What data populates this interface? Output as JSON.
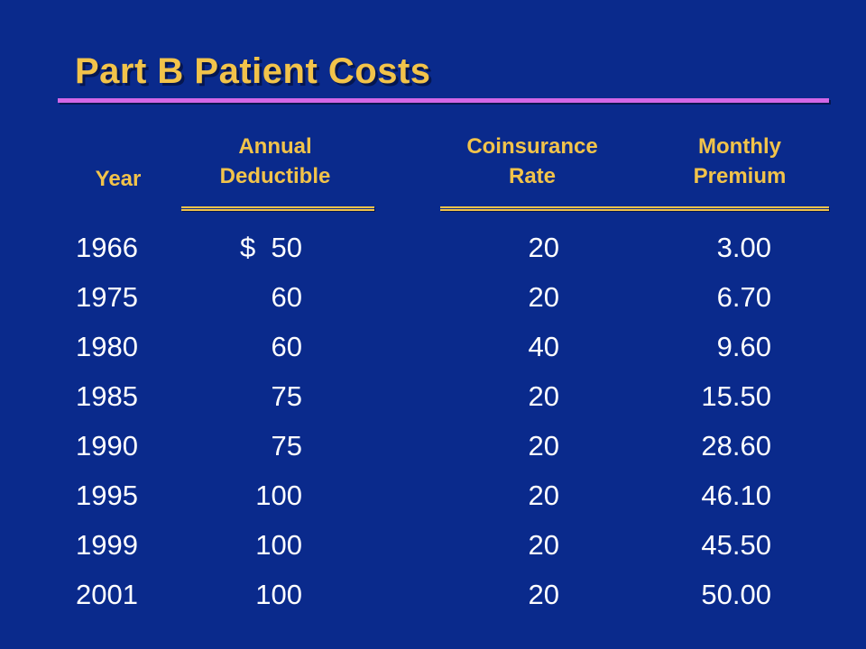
{
  "title": "Part B Patient Costs",
  "headers": {
    "year": [
      "Year"
    ],
    "deductible": [
      "Annual",
      "Deductible"
    ],
    "coinsurance": [
      "Coinsurance",
      "Rate"
    ],
    "premium": [
      "Monthly",
      "Premium"
    ]
  },
  "rows": [
    {
      "year": "1966",
      "deductible": "$  50",
      "coinsurance": "20",
      "premium": "3.00"
    },
    {
      "year": "1975",
      "deductible": "60",
      "coinsurance": "20",
      "premium": "6.70"
    },
    {
      "year": "1980",
      "deductible": "60",
      "coinsurance": "40",
      "premium": "9.60"
    },
    {
      "year": "1985",
      "deductible": "75",
      "coinsurance": "20",
      "premium": "15.50"
    },
    {
      "year": "1990",
      "deductible": "75",
      "coinsurance": "20",
      "premium": "28.60"
    },
    {
      "year": "1995",
      "deductible": "100",
      "coinsurance": "20",
      "premium": "46.10"
    },
    {
      "year": "1999",
      "deductible": "100",
      "coinsurance": "20",
      "premium": "45.50"
    },
    {
      "year": "2001",
      "deductible": "100",
      "coinsurance": "20",
      "premium": "50.00"
    }
  ],
  "colors": {
    "background": "#0a2a8c",
    "title": "#f2c34a",
    "title_rule": "#d267e6",
    "header_text": "#f2c34a",
    "cell_text": "#ffffff"
  }
}
